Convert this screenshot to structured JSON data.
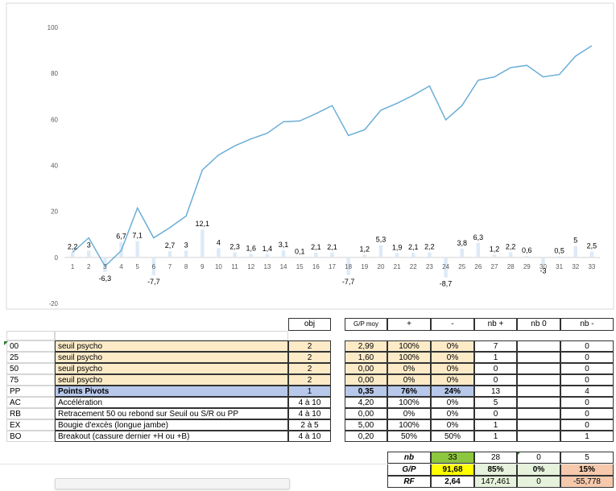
{
  "chart_data": {
    "type": "line+bar",
    "x": [
      1,
      2,
      3,
      4,
      5,
      6,
      7,
      8,
      9,
      10,
      11,
      12,
      13,
      14,
      15,
      16,
      17,
      18,
      19,
      20,
      21,
      22,
      23,
      24,
      25,
      26,
      27,
      28,
      29,
      30,
      31,
      32,
      33
    ],
    "ylim": [
      -20,
      100
    ],
    "yticks": [
      -20,
      0,
      20,
      40,
      60,
      80,
      100
    ],
    "line": [
      2.2,
      8.5,
      -3.8,
      2.9,
      21.5,
      8.5,
      13,
      18,
      38,
      44.5,
      48.5,
      51.5,
      54,
      59,
      59.3,
      62.5,
      66,
      53,
      55.5,
      64,
      67,
      70.5,
      74.5,
      59.8,
      66,
      77,
      78.5,
      82.5,
      83.5,
      78.5,
      79.5,
      87.5,
      92
    ],
    "bars": [
      2.2,
      3,
      -6.3,
      6.7,
      7.1,
      -7.7,
      2.7,
      3,
      12.1,
      4,
      2.3,
      1.6,
      1.4,
      3.1,
      0.1,
      2.1,
      2.1,
      -7.7,
      1.2,
      5.3,
      1.9,
      2.1,
      2.2,
      -8.7,
      3.8,
      6.3,
      1.2,
      2.2,
      0.6,
      -3,
      0.5,
      5,
      2.5
    ],
    "labels": [
      "2,2",
      "3",
      "-6,3",
      "6,7",
      "7,1",
      "-7,7",
      "2,7",
      "3",
      "12,1",
      "4",
      "2,3",
      "1,6",
      "1,4",
      "3,1",
      "0,1",
      "2,1",
      "2,1",
      "-7,7",
      "1,2",
      "5,3",
      "1,9",
      "2,1",
      "2,2",
      "-8,7",
      "3,8",
      "6,3",
      "1,2",
      "2,2",
      "0,6",
      "-3",
      "0,5",
      "5",
      "2,5"
    ],
    "colors": {
      "line": "#6aaed6",
      "bar": "#ddeaf7"
    }
  },
  "table": {
    "headers": {
      "obj": "obj",
      "gp_moy": "G/P moy",
      "plus": "+",
      "minus": "-",
      "nb_plus": "nb +",
      "nb_0": "nb 0",
      "nb_minus": "nb -"
    },
    "rows": [
      {
        "code": "00",
        "label": "seuil psycho",
        "obj": "2",
        "gp": "2,99",
        "plus": "100%",
        "minus": "0%",
        "nbp": "7",
        "nb0": "",
        "nbm": "0"
      },
      {
        "code": "25",
        "label": "seuil psycho",
        "obj": "2",
        "gp": "1,60",
        "plus": "100%",
        "minus": "0%",
        "nbp": "1",
        "nb0": "",
        "nbm": "0"
      },
      {
        "code": "50",
        "label": "seuil psycho",
        "obj": "2",
        "gp": "0,00",
        "plus": "0%",
        "minus": "0%",
        "nbp": "0",
        "nb0": "",
        "nbm": "0"
      },
      {
        "code": "75",
        "label": "seuil psycho",
        "obj": "2",
        "gp": "0,00",
        "plus": "0%",
        "minus": "0%",
        "nbp": "0",
        "nb0": "",
        "nbm": "0"
      },
      {
        "code": "PP",
        "label": "Points Pivots",
        "obj": "1",
        "gp": "0,35",
        "plus": "76%",
        "minus": "24%",
        "nbp": "13",
        "nb0": "",
        "nbm": "4"
      },
      {
        "code": "AC",
        "label": "Accélération",
        "obj": "4 à 10",
        "gp": "4,20",
        "plus": "100%",
        "minus": "0%",
        "nbp": "5",
        "nb0": "",
        "nbm": "0"
      },
      {
        "code": "RB",
        "label": "Retracement 50 ou rebond sur Seuil ou S/R ou PP",
        "obj": "4 à 10",
        "gp": "0,00",
        "plus": "0%",
        "minus": "0%",
        "nbp": "0",
        "nb0": "",
        "nbm": "0"
      },
      {
        "code": "EX",
        "label": "Bougie d'excès (longue jambe)",
        "obj": "2 à 5",
        "gp": "5,00",
        "plus": "100%",
        "minus": "0%",
        "nbp": "1",
        "nb0": "",
        "nbm": "0"
      },
      {
        "code": "BO",
        "label": "Breakout (cassure dernier +H ou +B)",
        "obj": "4 à 10",
        "gp": "0,20",
        "plus": "50%",
        "minus": "50%",
        "nbp": "1",
        "nb0": "",
        "nbm": "1"
      }
    ]
  },
  "summary": {
    "nb": {
      "label": "nb",
      "v1": "33",
      "v2": "28",
      "v3": "0",
      "v4": "5"
    },
    "gp": {
      "label": "G/P",
      "v1": "91,68",
      "v2": "85%",
      "v3": "0%",
      "v4": "15%"
    },
    "rf": {
      "label": "RF",
      "v1": "2,64",
      "v2": "147,461",
      "v3": "0",
      "v4": "-55,778"
    }
  }
}
